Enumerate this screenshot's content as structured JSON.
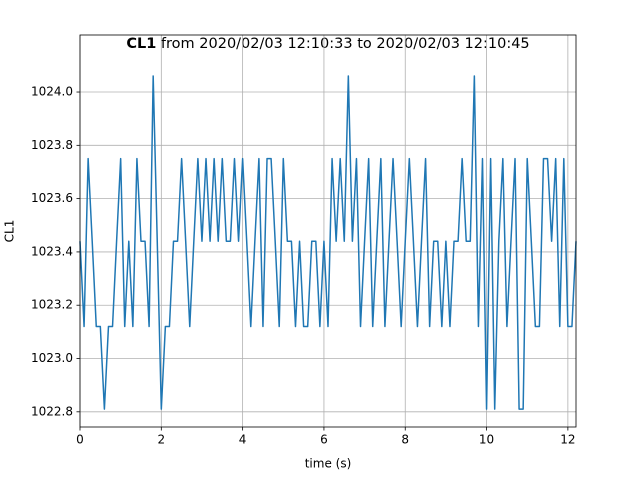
{
  "chart_data": {
    "type": "line",
    "title": {
      "bold": "CL1",
      "rest": "from 2020/02/03 12:10:33 to 2020/02/03 12:10:45"
    },
    "xlabel": "time (s)",
    "ylabel": "CL1",
    "xlim": [
      0,
      12.2
    ],
    "ylim": [
      1022.743,
      1024.214
    ],
    "xticks": [
      0,
      2,
      4,
      6,
      8,
      10,
      12
    ],
    "yticks": [
      1022.8,
      {
        "value": 1023.0,
        "label": "1023.0"
      },
      1023.2,
      1023.4,
      1023.6,
      1023.8,
      {
        "value": 1024.0,
        "label": "1024.0"
      }
    ],
    "grid": true,
    "x": [
      0.0,
      0.1,
      0.2,
      0.3,
      0.4,
      0.5,
      0.6,
      0.7,
      0.8,
      0.9,
      1.0,
      1.1,
      1.2,
      1.3,
      1.4,
      1.5,
      1.6,
      1.7,
      1.8,
      1.9,
      2.0,
      2.1,
      2.2,
      2.3,
      2.4,
      2.5,
      2.6,
      2.7,
      2.8,
      2.9,
      3.0,
      3.1,
      3.2,
      3.3,
      3.4,
      3.5,
      3.6,
      3.7,
      3.8,
      3.9,
      4.0,
      4.1,
      4.2,
      4.3,
      4.4,
      4.5,
      4.6,
      4.7,
      4.8,
      4.9,
      5.0,
      5.1,
      5.2,
      5.3,
      5.4,
      5.5,
      5.6,
      5.7,
      5.8,
      5.9,
      6.0,
      6.1,
      6.2,
      6.3,
      6.4,
      6.5,
      6.6,
      6.7,
      6.8,
      6.9,
      7.0,
      7.1,
      7.2,
      7.3,
      7.4,
      7.5,
      7.6,
      7.7,
      7.8,
      7.9,
      8.0,
      8.1,
      8.2,
      8.3,
      8.4,
      8.5,
      8.6,
      8.7,
      8.8,
      8.9,
      9.0,
      9.1,
      9.2,
      9.3,
      9.4,
      9.5,
      9.6,
      9.7,
      9.8,
      9.9,
      10.0,
      10.1,
      10.2,
      10.3,
      10.4,
      10.5,
      10.6,
      10.7,
      10.8,
      10.9,
      11.0,
      11.1,
      11.2,
      11.3,
      11.4,
      11.5,
      11.6,
      11.7,
      11.8,
      11.9,
      12.0,
      12.1,
      12.2
    ],
    "series": [
      {
        "name": "CL1",
        "color": "#1f77b4",
        "values": [
          1023.44,
          1023.12,
          1023.75,
          1023.44,
          1023.12,
          1023.12,
          1022.81,
          1023.12,
          1023.12,
          1023.44,
          1023.75,
          1023.12,
          1023.44,
          1023.12,
          1023.75,
          1023.44,
          1023.44,
          1023.12,
          1024.06,
          1023.44,
          1022.81,
          1023.12,
          1023.12,
          1023.44,
          1023.44,
          1023.75,
          1023.44,
          1023.12,
          1023.44,
          1023.75,
          1023.44,
          1023.75,
          1023.44,
          1023.75,
          1023.44,
          1023.75,
          1023.44,
          1023.44,
          1023.75,
          1023.44,
          1023.75,
          1023.44,
          1023.12,
          1023.44,
          1023.75,
          1023.12,
          1023.75,
          1023.75,
          1023.44,
          1023.12,
          1023.75,
          1023.44,
          1023.44,
          1023.12,
          1023.44,
          1023.12,
          1023.12,
          1023.44,
          1023.44,
          1023.12,
          1023.44,
          1023.12,
          1023.75,
          1023.44,
          1023.75,
          1023.44,
          1024.06,
          1023.44,
          1023.75,
          1023.12,
          1023.44,
          1023.75,
          1023.12,
          1023.44,
          1023.75,
          1023.12,
          1023.44,
          1023.75,
          1023.44,
          1023.12,
          1023.44,
          1023.75,
          1023.44,
          1023.12,
          1023.44,
          1023.75,
          1023.12,
          1023.44,
          1023.44,
          1023.12,
          1023.44,
          1023.12,
          1023.44,
          1023.44,
          1023.75,
          1023.44,
          1023.44,
          1024.06,
          1023.12,
          1023.75,
          1022.81,
          1023.75,
          1022.81,
          1023.44,
          1023.75,
          1023.12,
          1023.44,
          1023.75,
          1022.81,
          1022.81,
          1023.75,
          1023.44,
          1023.12,
          1023.12,
          1023.75,
          1023.75,
          1023.44,
          1023.75,
          1023.12,
          1023.75,
          1023.12,
          1023.12,
          1023.44
        ]
      }
    ]
  }
}
